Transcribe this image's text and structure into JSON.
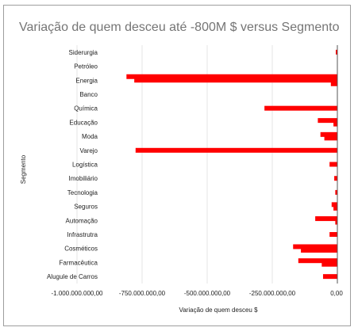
{
  "chart_data": {
    "type": "bar",
    "orientation": "horizontal",
    "title": "Variação de quem desceu até -800M $ versus Segmento",
    "xlabel": "Variação de quem desceu $",
    "ylabel": "Segmento",
    "xlim": [
      -1000000000,
      0
    ],
    "x_ticks": [
      -1000000000,
      -750000000,
      -500000000,
      -250000000,
      0
    ],
    "x_tick_labels": [
      "-1.000.000.000,00",
      "-750.000.000,00",
      "-500.000.000,00",
      "-250.000.000,00",
      "0,00"
    ],
    "grid": true,
    "bar_color": "#ff0000",
    "categories": [
      "Siderurgia",
      "Petróleo",
      "Energia",
      "Banco",
      "Química",
      "Educação",
      "Moda",
      "Varejo",
      "Logística",
      "Imobiliário",
      "Tecnologia",
      "Seguros",
      "Automação",
      "Infrastrutra",
      "Cosméticos",
      "Farmacêutica",
      "Alugule de Carros"
    ],
    "bars": [
      {
        "category": "Siderurgia",
        "value": -2000000
      },
      {
        "category": "Energia",
        "value": -810000000
      },
      {
        "category": "Energia",
        "value": -780000000
      },
      {
        "category": "Energia",
        "value": -25000000
      },
      {
        "category": "Química",
        "value": -280000000
      },
      {
        "category": "Educação",
        "value": -75000000
      },
      {
        "category": "Educação",
        "value": -15000000
      },
      {
        "category": "Moda",
        "value": -65000000
      },
      {
        "category": "Moda",
        "value": -50000000
      },
      {
        "category": "Varejo",
        "value": -775000000
      },
      {
        "category": "Logística",
        "value": -30000000
      },
      {
        "category": "Imobiliário",
        "value": -12000000
      },
      {
        "category": "Tecnologia",
        "value": -8000000
      },
      {
        "category": "Seguros",
        "value": -22000000
      },
      {
        "category": "Seguros",
        "value": -15000000
      },
      {
        "category": "Automação",
        "value": -85000000
      },
      {
        "category": "Automação",
        "value": -8000000
      },
      {
        "category": "Infrastrutra",
        "value": -30000000
      },
      {
        "category": "Cosméticos",
        "value": -170000000
      },
      {
        "category": "Cosméticos",
        "value": -140000000
      },
      {
        "category": "Farmacêutica",
        "value": -150000000
      },
      {
        "category": "Farmacêutica",
        "value": -60000000
      },
      {
        "category": "Alugule de Carros",
        "value": -55000000
      }
    ]
  }
}
